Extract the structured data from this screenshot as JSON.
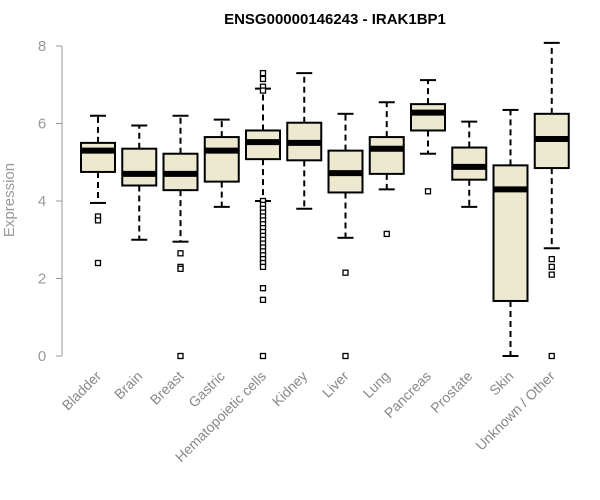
{
  "chart_data": {
    "type": "boxplot",
    "title": "ENSG00000146243 - IRAK1BP1",
    "xlabel": "",
    "ylabel": "Expression",
    "ylim": [
      0,
      8
    ],
    "yticks": [
      0,
      2,
      4,
      6,
      8
    ],
    "grid": false,
    "colors": {
      "box_fill": "#ede8d0",
      "box_stroke": "#000000",
      "median": "#000000",
      "axis": "#999999"
    },
    "categories": [
      "Bladder",
      "Brain",
      "Breast",
      "Gastric",
      "Hematopoietic cells",
      "Kidney",
      "Liver",
      "Lung",
      "Pancreas",
      "Prostate",
      "Skin",
      "Unknown / Other"
    ],
    "boxes": [
      {
        "name": "Bladder",
        "whisker_low": 3.95,
        "q1": 4.75,
        "median": 5.3,
        "q3": 5.5,
        "whisker_high": 6.2,
        "outliers": [
          3.6,
          3.5,
          2.4
        ]
      },
      {
        "name": "Brain",
        "whisker_low": 3.0,
        "q1": 4.4,
        "median": 4.7,
        "q3": 5.35,
        "whisker_high": 5.95,
        "outliers": []
      },
      {
        "name": "Breast",
        "whisker_low": 2.95,
        "q1": 4.28,
        "median": 4.7,
        "q3": 5.22,
        "whisker_high": 6.2,
        "outliers": [
          2.65,
          2.3,
          2.25,
          0.0
        ]
      },
      {
        "name": "Gastric",
        "whisker_low": 3.85,
        "q1": 4.5,
        "median": 5.3,
        "q3": 5.65,
        "whisker_high": 6.1,
        "outliers": []
      },
      {
        "name": "Hematopoietic cells",
        "whisker_low": 4.0,
        "q1": 5.08,
        "median": 5.52,
        "q3": 5.82,
        "whisker_high": 6.9,
        "outliers": [
          7.3,
          7.15,
          6.95,
          6.85,
          4.0,
          3.9,
          3.8,
          3.7,
          3.6,
          3.5,
          3.4,
          3.3,
          3.2,
          3.1,
          3.0,
          2.9,
          2.8,
          2.7,
          2.6,
          2.5,
          2.4,
          2.3,
          1.75,
          1.45,
          0.0
        ]
      },
      {
        "name": "Kidney",
        "whisker_low": 3.8,
        "q1": 5.05,
        "median": 5.5,
        "q3": 6.02,
        "whisker_high": 7.3,
        "outliers": []
      },
      {
        "name": "Liver",
        "whisker_low": 3.05,
        "q1": 4.22,
        "median": 4.72,
        "q3": 5.3,
        "whisker_high": 6.25,
        "outliers": [
          2.15,
          0.0
        ]
      },
      {
        "name": "Lung",
        "whisker_low": 4.3,
        "q1": 4.7,
        "median": 5.35,
        "q3": 5.65,
        "whisker_high": 6.55,
        "outliers": [
          3.15
        ]
      },
      {
        "name": "Pancreas",
        "whisker_low": 5.22,
        "q1": 5.82,
        "median": 6.28,
        "q3": 6.5,
        "whisker_high": 7.12,
        "outliers": [
          4.25
        ]
      },
      {
        "name": "Prostate",
        "whisker_low": 3.85,
        "q1": 4.55,
        "median": 4.88,
        "q3": 5.38,
        "whisker_high": 6.05,
        "outliers": []
      },
      {
        "name": "Skin",
        "whisker_low": 0.0,
        "q1": 1.42,
        "median": 4.3,
        "q3": 4.92,
        "whisker_high": 6.35,
        "outliers": []
      },
      {
        "name": "Unknown / Other",
        "whisker_low": 2.78,
        "q1": 4.85,
        "median": 5.6,
        "q3": 6.25,
        "whisker_high": 8.08,
        "outliers": [
          2.5,
          2.3,
          2.1,
          0.0
        ]
      }
    ]
  }
}
